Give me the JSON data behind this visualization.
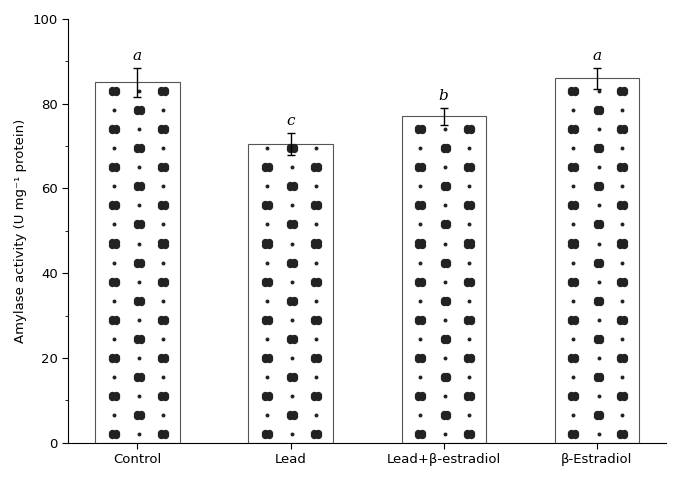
{
  "categories": [
    "Control",
    "Lead",
    "Lead+β-estradiol",
    "β-Estradiol"
  ],
  "values": [
    85.0,
    70.5,
    77.0,
    86.0
  ],
  "errors": [
    3.5,
    2.5,
    2.0,
    2.5
  ],
  "letters": [
    "a",
    "c",
    "b",
    "a"
  ],
  "ylabel": "Amylase activity (U mg⁻¹ protein)",
  "ylim": [
    0,
    100
  ],
  "yticks": [
    0,
    20,
    40,
    60,
    80,
    100
  ],
  "bar_color": "#ffffff",
  "bar_edgecolor": "#555555",
  "bar_width": 0.55,
  "figsize": [
    6.8,
    4.8
  ],
  "dpi": 100,
  "dot_big_size": 28,
  "dot_small_size": 8,
  "dot_color": "#222222"
}
